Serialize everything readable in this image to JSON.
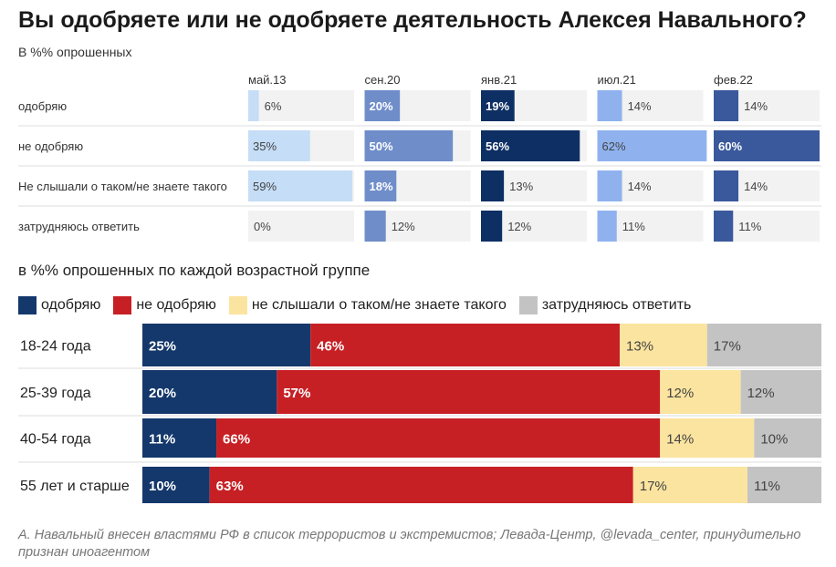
{
  "title": "Вы одобряете или не одобряете деятельность Алексея Навального?",
  "subtitle": "В %% опрошенных",
  "subtitle2": "в %% опрошенных по каждой возрастной группе",
  "footer": "А. Навальный внесен властями РФ в список террористов и экстремистов; Левада-Центр, @levada_center, принудительно признан иноагентом",
  "legend": [
    {
      "label": "одобряю",
      "color": "#14386b"
    },
    {
      "label": "не одобряю",
      "color": "#c62025"
    },
    {
      "label": "не слышали о таком/не знаете такого",
      "color": "#fbe49f"
    },
    {
      "label": "затрудняюсь ответить",
      "color": "#c3c3c3"
    }
  ],
  "chart_data": [
    {
      "type": "bar",
      "title": "Вы одобряете или не одобряете деятельность Алексея Навального?",
      "subtitle": "В %% опрошенных",
      "categories": [
        "одобряю",
        "не одобряю",
        "Не слышали о таком/не знаете такого",
        "затрудняюсь ответить"
      ],
      "series": [
        {
          "name": "май.13",
          "color": "#c5ddf6",
          "values": [
            6,
            35,
            59,
            0
          ]
        },
        {
          "name": "сен.20",
          "color": "#6f8dc9",
          "values": [
            20,
            50,
            18,
            12
          ]
        },
        {
          "name": "янв.21",
          "color": "#0e2f63",
          "values": [
            19,
            56,
            13,
            12
          ]
        },
        {
          "name": "июл.21",
          "color": "#8fb2ef",
          "values": [
            14,
            62,
            14,
            11
          ]
        },
        {
          "name": "фев.22",
          "color": "#3a589c",
          "values": [
            14,
            60,
            14,
            11
          ]
        }
      ],
      "ylim": [
        0,
        60
      ],
      "value_suffix": "%"
    },
    {
      "type": "bar",
      "title": "в %% опрошенных по каждой возрастной группе",
      "stacked": true,
      "orientation": "horizontal",
      "categories": [
        "18-24 года",
        "25-39 года",
        "40-54 года",
        "55 лет и старше"
      ],
      "series": [
        {
          "name": "одобряю",
          "color": "#14386b",
          "values": [
            25,
            20,
            11,
            10
          ]
        },
        {
          "name": "не одобряю",
          "color": "#c62025",
          "values": [
            46,
            57,
            66,
            63
          ]
        },
        {
          "name": "не слышали о таком/не знаете такого",
          "color": "#fbe49f",
          "values": [
            13,
            12,
            14,
            17
          ]
        },
        {
          "name": "затрудняюсь ответить",
          "color": "#c3c3c3",
          "values": [
            17,
            12,
            10,
            11
          ]
        }
      ],
      "value_suffix": "%"
    }
  ]
}
